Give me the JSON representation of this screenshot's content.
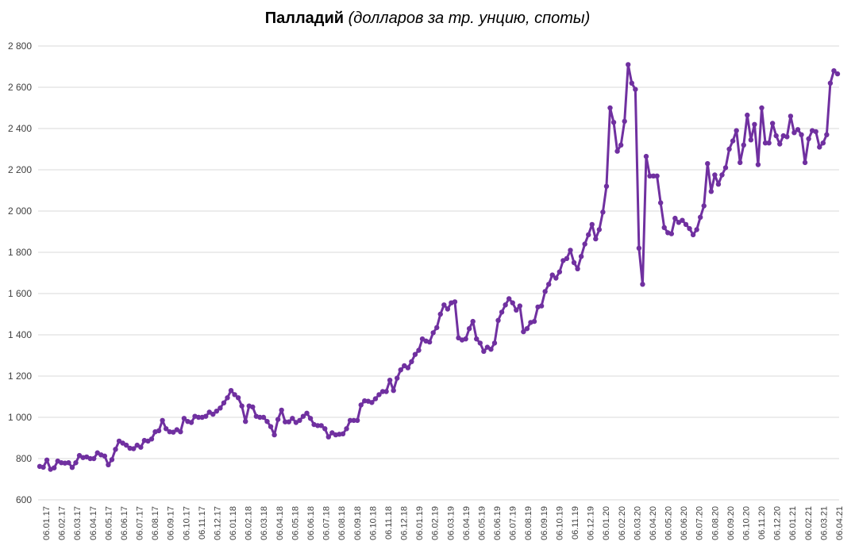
{
  "chart_data": {
    "type": "line",
    "title_bold": "Палладий",
    "title_italic": "(долларов за тр. унцию, споты)",
    "ylim": [
      600,
      2800
    ],
    "yticks": [
      600,
      800,
      1000,
      1200,
      1400,
      1600,
      1800,
      2000,
      2200,
      2400,
      2600,
      2800
    ],
    "ytick_labels": [
      "600",
      "800",
      "1 000",
      "1 200",
      "1 400",
      "1 600",
      "1 800",
      "2 000",
      "2 200",
      "2 400",
      "2 600",
      "2 800"
    ],
    "xtick_labels": [
      "06.01.17",
      "06.02.17",
      "06.03.17",
      "06.04.17",
      "06.05.17",
      "06.06.17",
      "06.07.17",
      "06.08.17",
      "06.09.17",
      "06.10.17",
      "06.11.17",
      "06.12.17",
      "06.01.18",
      "06.02.18",
      "06.03.18",
      "06.04.18",
      "06.05.18",
      "06.06.18",
      "06.07.18",
      "06.08.18",
      "06.09.18",
      "06.10.18",
      "06.11.18",
      "06.12.18",
      "06.01.19",
      "06.02.19",
      "06.03.19",
      "06.04.19",
      "06.05.19",
      "06.06.19",
      "06.07.19",
      "06.08.19",
      "06.09.19",
      "06.10.19",
      "06.11.19",
      "06.12.19",
      "06.01.20",
      "06.02.20",
      "06.03.20",
      "06.04.20",
      "06.05.20",
      "06.06.20",
      "06.07.20",
      "06.08.20",
      "06.09.20",
      "06.10.20",
      "06.11.20",
      "06.12.20",
      "06.01.21",
      "06.02.21",
      "06.03.21",
      "06.04.21"
    ],
    "grid": true,
    "legend": "none",
    "series": [
      {
        "color": "#7030a0",
        "values": [
          762,
          758,
          793,
          748,
          755,
          788,
          780,
          778,
          780,
          757,
          780,
          815,
          805,
          808,
          800,
          800,
          828,
          818,
          812,
          770,
          795,
          845,
          885,
          875,
          865,
          850,
          848,
          865,
          855,
          888,
          885,
          895,
          930,
          935,
          985,
          945,
          930,
          928,
          940,
          930,
          995,
          980,
          975,
          1005,
          1000,
          1000,
          1005,
          1025,
          1015,
          1030,
          1045,
          1070,
          1095,
          1130,
          1110,
          1095,
          1055,
          980,
          1055,
          1050,
          1005,
          1000,
          1000,
          980,
          955,
          915,
          990,
          1035,
          978,
          978,
          995,
          975,
          985,
          1005,
          1020,
          995,
          965,
          960,
          960,
          945,
          905,
          925,
          915,
          918,
          920,
          945,
          985,
          985,
          985,
          1060,
          1080,
          1078,
          1072,
          1090,
          1110,
          1125,
          1125,
          1180,
          1130,
          1190,
          1230,
          1250,
          1240,
          1270,
          1305,
          1325,
          1380,
          1370,
          1365,
          1410,
          1435,
          1500,
          1545,
          1525,
          1555,
          1560,
          1385,
          1375,
          1380,
          1430,
          1465,
          1380,
          1360,
          1320,
          1340,
          1330,
          1360,
          1470,
          1510,
          1545,
          1575,
          1555,
          1520,
          1540,
          1415,
          1430,
          1460,
          1465,
          1535,
          1540,
          1610,
          1645,
          1690,
          1675,
          1705,
          1760,
          1770,
          1810,
          1750,
          1720,
          1780,
          1840,
          1885,
          1935,
          1865,
          1910,
          1995,
          2120,
          2500,
          2430,
          2290,
          2320,
          2435,
          2710,
          2620,
          2590,
          1820,
          1645,
          2265,
          2170,
          2170,
          2170,
          2040,
          1920,
          1895,
          1890,
          1965,
          1945,
          1955,
          1935,
          1915,
          1885,
          1910,
          1970,
          2025,
          2230,
          2095,
          2175,
          2130,
          2175,
          2210,
          2300,
          2340,
          2390,
          2235,
          2320,
          2465,
          2345,
          2420,
          2225,
          2500,
          2330,
          2330,
          2425,
          2365,
          2325,
          2365,
          2360,
          2460,
          2380,
          2395,
          2370,
          2235,
          2350,
          2390,
          2385,
          2310,
          2330,
          2370,
          2620,
          2680,
          2665
        ]
      }
    ]
  }
}
